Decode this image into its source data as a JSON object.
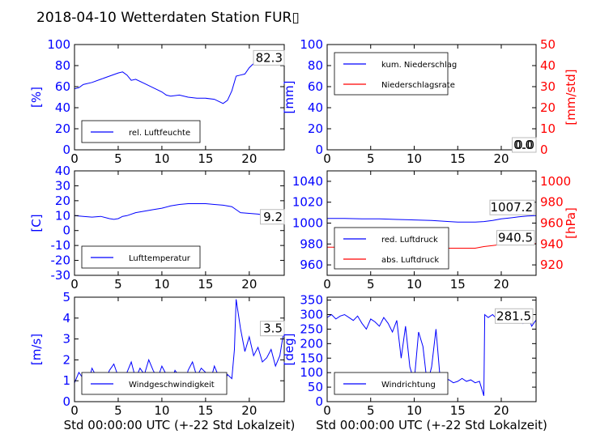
{
  "title": "2018-04-10 Wetterdaten Station FUR▯",
  "colors": {
    "primary": "#0000ff",
    "secondary": "#ff0000",
    "frame": "#000000"
  },
  "chart_data": [
    {
      "id": "humidity",
      "type": "line",
      "ylabel": "[%]",
      "xlim": [
        0,
        24
      ],
      "ylim": [
        0,
        100
      ],
      "xticks": [
        0,
        5,
        10,
        15,
        20
      ],
      "yticks": [
        0,
        20,
        40,
        60,
        80,
        100
      ],
      "current_value": "82.3",
      "legend": {
        "placement": "lower-left"
      },
      "series": [
        {
          "name": "rel. Luftfeuchte",
          "color": "#0000ff",
          "x": [
            0,
            0.5,
            1,
            2,
            3,
            4,
            5,
            5.5,
            6,
            6.5,
            7,
            8,
            9,
            10,
            10.5,
            11,
            12,
            13,
            14,
            15,
            16,
            16.5,
            17,
            17.5,
            18,
            18.5,
            19,
            19.5,
            20,
            20.5,
            21,
            22,
            23,
            24
          ],
          "y": [
            58,
            59,
            62,
            64,
            67,
            70,
            73,
            74,
            71,
            66,
            67,
            63,
            59,
            55,
            52,
            51,
            52,
            50,
            49,
            49,
            48,
            46,
            44,
            47,
            56,
            70,
            71,
            72,
            78,
            82,
            82,
            82,
            82,
            82
          ]
        }
      ]
    },
    {
      "id": "precipitation",
      "type": "line",
      "ylabel": "[mm]",
      "ylabel_right": "[mm/std]",
      "xlim": [
        0,
        24
      ],
      "ylim": [
        0,
        100
      ],
      "ylim_right": [
        0,
        50
      ],
      "xticks": [
        0,
        5,
        10,
        15,
        20
      ],
      "yticks": [
        0,
        20,
        40,
        60,
        80,
        100
      ],
      "yticks_right": [
        0,
        10,
        20,
        30,
        40,
        50
      ],
      "current_value": "0.0",
      "current_value_right": "0.0",
      "legend": {
        "placement": "upper-left"
      },
      "series": [
        {
          "name": "kum. Niederschlag",
          "color": "#0000ff",
          "axis": "left",
          "x": [
            0,
            24
          ],
          "y": [
            0,
            0
          ]
        },
        {
          "name": "Niederschlagsrate",
          "color": "#ff0000",
          "axis": "right",
          "x": [
            0,
            24
          ],
          "y": [
            0,
            0
          ]
        }
      ]
    },
    {
      "id": "temperature",
      "type": "line",
      "ylabel": "[C]",
      "xlim": [
        0,
        24
      ],
      "ylim": [
        -30,
        40
      ],
      "xticks": [
        0,
        5,
        10,
        15,
        20
      ],
      "yticks": [
        -30,
        -20,
        -10,
        0,
        10,
        20,
        30,
        40
      ],
      "current_value": "9.2",
      "legend": {
        "placement": "lower-left"
      },
      "series": [
        {
          "name": "Lufttemperatur",
          "color": "#0000ff",
          "x": [
            0,
            1,
            2,
            3,
            4,
            4.5,
            5,
            5.5,
            6,
            7,
            8,
            9,
            10,
            11,
            12,
            13,
            14,
            15,
            16,
            17,
            18,
            18.5,
            19,
            20,
            21,
            22,
            23,
            24
          ],
          "y": [
            10,
            9.5,
            9,
            9.5,
            8,
            7.5,
            8,
            9.5,
            10,
            12,
            13,
            14,
            15,
            16.5,
            17.5,
            18,
            18,
            18,
            17.5,
            17,
            16,
            14,
            12,
            11.5,
            11,
            10,
            9.5,
            9.2
          ]
        }
      ]
    },
    {
      "id": "pressure",
      "type": "line",
      "ylabel_right": "[hPa]",
      "xlim": [
        0,
        24
      ],
      "ylim": [
        950,
        1050
      ],
      "ylim_right": [
        910,
        1010
      ],
      "xticks": [
        0,
        5,
        10,
        15,
        20
      ],
      "yticks": [
        960,
        980,
        1000,
        1020,
        1040
      ],
      "yticks_right": [
        920,
        940,
        960,
        980,
        1000
      ],
      "current_value": "1007.2",
      "current_value_right": "940.5",
      "legend": {
        "placement": "lower-left"
      },
      "series": [
        {
          "name": "red. Luftdruck",
          "color": "#0000ff",
          "axis": "left",
          "x": [
            0,
            2,
            4,
            6,
            8,
            10,
            12,
            14,
            15,
            16,
            17,
            18,
            19,
            20,
            21,
            22,
            23,
            24
          ],
          "y": [
            1004.5,
            1004.5,
            1004,
            1004,
            1003.5,
            1003,
            1002.5,
            1001.5,
            1001,
            1001,
            1001,
            1001.5,
            1002.5,
            1004,
            1005,
            1006,
            1006.8,
            1007.2
          ]
        },
        {
          "name": "abs. Luftdruck",
          "color": "#ff0000",
          "axis": "right",
          "x": [
            0,
            2,
            4,
            6,
            8,
            10,
            12,
            14,
            16,
            17,
            18,
            19,
            20,
            21,
            22,
            23,
            24
          ],
          "y": [
            937,
            937,
            936.5,
            936.5,
            936.5,
            936,
            936,
            936,
            936,
            936,
            937.5,
            938.5,
            939.5,
            940,
            940,
            940.2,
            940.5
          ]
        }
      ]
    },
    {
      "id": "wind_speed",
      "type": "line",
      "ylabel": "[m/s]",
      "xlabel": "Std 00:00:00 UTC (+-22 Std Lokalzeit)",
      "xlim": [
        0,
        24
      ],
      "ylim": [
        0,
        5
      ],
      "xticks": [
        0,
        5,
        10,
        15,
        20
      ],
      "yticks": [
        0,
        1,
        2,
        3,
        4,
        5
      ],
      "current_value": "3.5",
      "legend": {
        "placement": "lower-left"
      },
      "series": [
        {
          "name": "Windgeschwindigkeit",
          "color": "#0000ff",
          "x": [
            0,
            0.5,
            1,
            1.5,
            2,
            2.5,
            3,
            3.5,
            4,
            4.5,
            5,
            5.5,
            6,
            6.5,
            7,
            7.5,
            8,
            8.5,
            9,
            9.5,
            10,
            10.5,
            11,
            11.5,
            12,
            12.5,
            13,
            13.5,
            14,
            14.5,
            15,
            15.5,
            16,
            16.5,
            17,
            17.5,
            18,
            18.3,
            18.5,
            19,
            19.5,
            20,
            20.5,
            21,
            21.5,
            22,
            22.5,
            23,
            23.5,
            24
          ],
          "y": [
            0.9,
            1.4,
            1.1,
            0.8,
            1.6,
            1.2,
            0.9,
            1.0,
            1.5,
            1.8,
            1.2,
            0.7,
            1.4,
            1.9,
            1.1,
            1.6,
            1.3,
            2.0,
            1.5,
            1.1,
            1.7,
            1.3,
            0.9,
            1.5,
            1.2,
            0.6,
            1.5,
            1.9,
            1.2,
            1.6,
            1.4,
            0.9,
            1.7,
            1.2,
            0.8,
            1.3,
            1.1,
            2.5,
            4.9,
            3.5,
            2.4,
            3.1,
            2.2,
            2.6,
            1.9,
            2.1,
            2.5,
            1.7,
            2.2,
            3.5
          ]
        }
      ]
    },
    {
      "id": "wind_direction",
      "type": "line",
      "ylabel": "[deg]",
      "xlabel": "Std 00:00:00 UTC (+-22 Std Lokalzeit)",
      "xlim": [
        0,
        24
      ],
      "ylim": [
        0,
        360
      ],
      "xticks": [
        0,
        5,
        10,
        15,
        20
      ],
      "yticks": [
        0,
        50,
        100,
        150,
        200,
        250,
        300,
        350
      ],
      "current_value": "281.5",
      "legend": {
        "placement": "lower-left"
      },
      "series": [
        {
          "name": "Windrichtung",
          "color": "#0000ff",
          "x": [
            0,
            0.5,
            1,
            1.5,
            2,
            2.5,
            3,
            3.5,
            4,
            4.5,
            5,
            5.5,
            6,
            6.5,
            7,
            7.5,
            8,
            8.5,
            9,
            9.5,
            10,
            10.5,
            11,
            11.5,
            12,
            12.5,
            13,
            13.5,
            14,
            14.5,
            15,
            15.5,
            16,
            16.5,
            17,
            17.5,
            18,
            18.1,
            18.5,
            19,
            19.5,
            20,
            20.5,
            21,
            21.5,
            22,
            22.5,
            23,
            23.5,
            24
          ],
          "y": [
            290,
            300,
            285,
            295,
            300,
            290,
            280,
            295,
            270,
            250,
            285,
            275,
            260,
            290,
            270,
            240,
            280,
            150,
            260,
            120,
            70,
            240,
            190,
            60,
            120,
            250,
            70,
            80,
            75,
            65,
            70,
            80,
            70,
            75,
            65,
            70,
            20,
            300,
            290,
            300,
            285,
            295,
            300,
            290,
            280,
            295,
            270,
            300,
            260,
            281.5
          ]
        }
      ]
    }
  ]
}
